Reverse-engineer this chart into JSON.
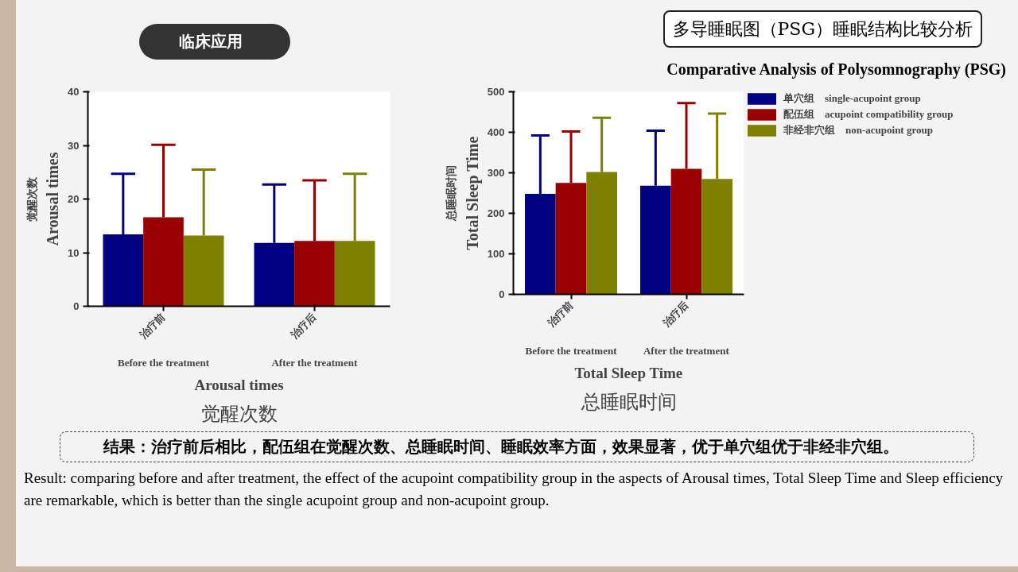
{
  "chart_data": [
    {
      "type": "bar",
      "title": "觉醒次数",
      "subtitle": "Arousal times",
      "ylabel": "Arousal times\n觉醒次数",
      "categories": [
        "治疗前",
        "治疗后"
      ],
      "annotations": [
        "Before the treatment",
        "After the treatment"
      ],
      "ylim": [
        0,
        40
      ],
      "yticks": [
        0,
        10,
        20,
        30,
        40
      ],
      "grid": false,
      "legend": false,
      "series": [
        {
          "color": "#000080",
          "values": [
            13.4,
            11.8
          ],
          "errors": [
            [
              13.4,
              24.7
            ],
            [
              11.8,
              22.7
            ]
          ]
        },
        {
          "color": "#990000",
          "values": [
            16.6,
            12.2
          ],
          "errors": [
            [
              16.6,
              30.1
            ],
            [
              12.2,
              23.5
            ]
          ]
        },
        {
          "color": "#808000",
          "values": [
            13.2,
            12.2
          ],
          "errors": [
            [
              13.2,
              25.5
            ],
            [
              12.2,
              24.7
            ]
          ]
        }
      ]
    },
    {
      "type": "bar",
      "title": "总睡眠时间",
      "subtitle": "Total Sleep Time",
      "ylabel": "Total Sleep Time\n总睡眠时间",
      "categories": [
        "治疗前",
        "治疗后"
      ],
      "annotations": [
        "Before the treatment",
        "After the treatment"
      ],
      "ylim": [
        0,
        500
      ],
      "yticks": [
        0,
        100,
        200,
        300,
        400,
        500
      ],
      "grid": false,
      "legend": "top right",
      "series": [
        {
          "name": "单穴组    single-acupoint group",
          "color": "#000080",
          "values": [
            248,
            268
          ],
          "errors": [
            [
              248,
              392
            ],
            [
              268,
              404
            ]
          ]
        },
        {
          "name": "配伍组    acupoint compatibility group",
          "color": "#990000",
          "values": [
            275,
            310
          ],
          "errors": [
            [
              275,
              402
            ],
            [
              310,
              472
            ]
          ]
        },
        {
          "name": "非经非穴组    non-acupoint group",
          "color": "#808000",
          "values": [
            302,
            285
          ],
          "errors": [
            [
              302,
              436
            ],
            [
              285,
              446
            ]
          ]
        }
      ]
    },
    {
      "type": "other",
      "title": "多导睡眠图（PSG）睡眠结构比较分析",
      "subtitle": "Comparative Analysis of Polysomnography (PSG)",
      "annotations": [
        "临床应用",
        "结果：治疗前后相比，配伍组在觉醒次数、总睡眠时间、睡眠效率方面，效果显著，优于单穴组优于非经非穴组。",
        "Result: comparing before and after treatment, the effect of the acupoint compatibility group in the aspects of Arousal times, Total Sleep Time and Sleep efficiency are remarkable, which is better than the single acupoint group and non-acupoint group."
      ]
    }
  ]
}
